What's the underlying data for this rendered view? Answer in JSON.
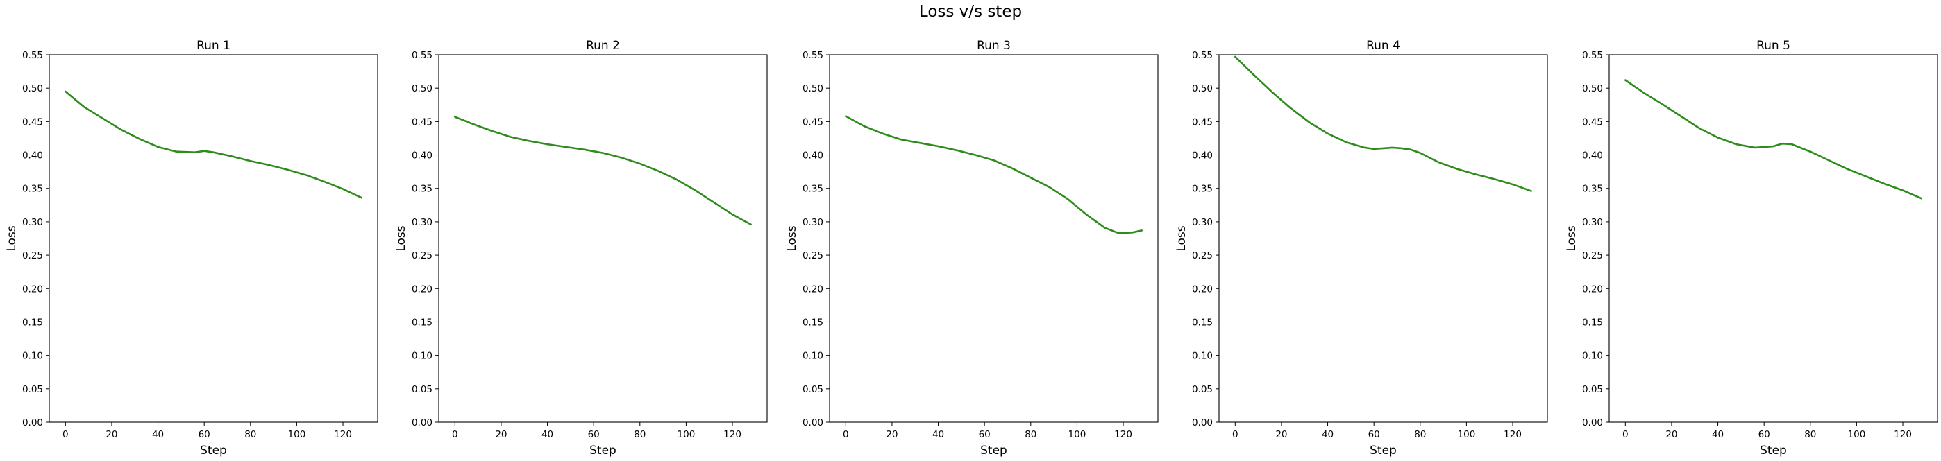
{
  "suptitle": "Loss v/s step",
  "chart_data": [
    {
      "type": "line",
      "title": "Run 1",
      "xlabel": "Step",
      "ylabel": "Loss",
      "xlim": [
        -7,
        135
      ],
      "ylim": [
        0,
        0.55
      ],
      "xticks": [
        0,
        20,
        40,
        60,
        80,
        100,
        120
      ],
      "yticks": [
        "0.00",
        "0.05",
        "0.10",
        "0.15",
        "0.20",
        "0.25",
        "0.30",
        "0.35",
        "0.40",
        "0.45",
        "0.50",
        "0.55"
      ],
      "grid": false,
      "line_color": "#2e8b1c",
      "series": [
        {
          "x": [
            0,
            8,
            16,
            24,
            32,
            40,
            48,
            56,
            60,
            64,
            72,
            80,
            88,
            96,
            104,
            112,
            120,
            128
          ],
          "y": [
            0.495,
            0.472,
            0.455,
            0.438,
            0.424,
            0.412,
            0.405,
            0.404,
            0.406,
            0.404,
            0.398,
            0.391,
            0.385,
            0.378,
            0.37,
            0.36,
            0.349,
            0.336
          ]
        }
      ]
    },
    {
      "type": "line",
      "title": "Run 2",
      "xlabel": "Step",
      "ylabel": "Loss",
      "xlim": [
        -7,
        135
      ],
      "ylim": [
        0,
        0.55
      ],
      "xticks": [
        0,
        20,
        40,
        60,
        80,
        100,
        120
      ],
      "yticks": [
        "0.00",
        "0.05",
        "0.10",
        "0.15",
        "0.20",
        "0.25",
        "0.30",
        "0.35",
        "0.40",
        "0.45",
        "0.50",
        "0.55"
      ],
      "grid": false,
      "line_color": "#2e8b1c",
      "series": [
        {
          "x": [
            0,
            8,
            16,
            24,
            32,
            40,
            48,
            56,
            64,
            72,
            80,
            88,
            96,
            104,
            112,
            120,
            128
          ],
          "y": [
            0.457,
            0.446,
            0.436,
            0.427,
            0.421,
            0.416,
            0.412,
            0.408,
            0.403,
            0.396,
            0.387,
            0.376,
            0.363,
            0.347,
            0.329,
            0.311,
            0.296
          ]
        }
      ]
    },
    {
      "type": "line",
      "title": "Run 3",
      "xlabel": "Step",
      "ylabel": "Loss",
      "xlim": [
        -7,
        135
      ],
      "ylim": [
        0,
        0.55
      ],
      "xticks": [
        0,
        20,
        40,
        60,
        80,
        100,
        120
      ],
      "yticks": [
        "0.00",
        "0.05",
        "0.10",
        "0.15",
        "0.20",
        "0.25",
        "0.30",
        "0.35",
        "0.40",
        "0.45",
        "0.50",
        "0.55"
      ],
      "grid": false,
      "line_color": "#2e8b1c",
      "series": [
        {
          "x": [
            0,
            8,
            16,
            24,
            32,
            40,
            48,
            56,
            64,
            72,
            80,
            88,
            96,
            104,
            112,
            118,
            124,
            128
          ],
          "y": [
            0.458,
            0.443,
            0.432,
            0.423,
            0.418,
            0.413,
            0.407,
            0.4,
            0.392,
            0.38,
            0.366,
            0.352,
            0.334,
            0.311,
            0.291,
            0.283,
            0.284,
            0.287
          ]
        }
      ]
    },
    {
      "type": "line",
      "title": "Run 4",
      "xlabel": "Step",
      "ylabel": "Loss",
      "xlim": [
        -7,
        135
      ],
      "ylim": [
        0,
        0.55
      ],
      "xticks": [
        0,
        20,
        40,
        60,
        80,
        100,
        120
      ],
      "yticks": [
        "0.00",
        "0.05",
        "0.10",
        "0.15",
        "0.20",
        "0.25",
        "0.30",
        "0.35",
        "0.40",
        "0.45",
        "0.50",
        "0.55"
      ],
      "grid": false,
      "line_color": "#2e8b1c",
      "series": [
        {
          "x": [
            0,
            8,
            16,
            24,
            32,
            40,
            48,
            56,
            60,
            64,
            68,
            72,
            76,
            80,
            88,
            96,
            104,
            112,
            120,
            128
          ],
          "y": [
            0.547,
            0.52,
            0.494,
            0.47,
            0.449,
            0.432,
            0.419,
            0.411,
            0.409,
            0.41,
            0.411,
            0.41,
            0.408,
            0.403,
            0.389,
            0.379,
            0.371,
            0.364,
            0.356,
            0.346
          ]
        }
      ]
    },
    {
      "type": "line",
      "title": "Run 5",
      "xlabel": "Step",
      "ylabel": "Loss",
      "xlim": [
        -7,
        135
      ],
      "ylim": [
        0,
        0.55
      ],
      "xticks": [
        0,
        20,
        40,
        60,
        80,
        100,
        120
      ],
      "yticks": [
        "0.00",
        "0.05",
        "0.10",
        "0.15",
        "0.20",
        "0.25",
        "0.30",
        "0.35",
        "0.40",
        "0.45",
        "0.50",
        "0.55"
      ],
      "grid": false,
      "line_color": "#2e8b1c",
      "series": [
        {
          "x": [
            0,
            8,
            16,
            24,
            32,
            40,
            48,
            56,
            64,
            68,
            72,
            80,
            88,
            96,
            104,
            112,
            120,
            128
          ],
          "y": [
            0.512,
            0.493,
            0.476,
            0.458,
            0.44,
            0.426,
            0.416,
            0.411,
            0.413,
            0.417,
            0.416,
            0.405,
            0.392,
            0.379,
            0.368,
            0.357,
            0.347,
            0.335
          ]
        }
      ]
    }
  ]
}
